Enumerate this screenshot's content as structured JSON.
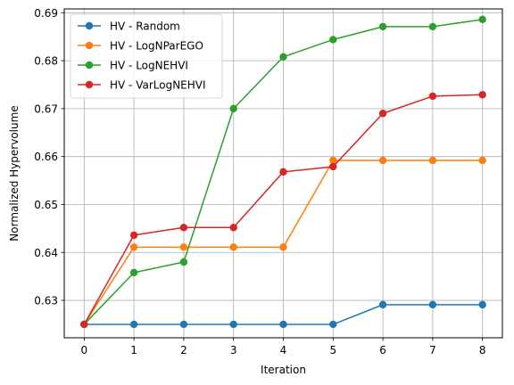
{
  "chart_data": {
    "type": "line",
    "title": "",
    "xlabel": "Iteration",
    "ylabel": "Normalized Hypervolume",
    "x": [
      0,
      1,
      2,
      3,
      4,
      5,
      6,
      7,
      8
    ],
    "xlim": [
      -0.4,
      8.4
    ],
    "ylim": [
      0.6222,
      0.6908
    ],
    "xticks": [
      0,
      1,
      2,
      3,
      4,
      5,
      6,
      7,
      8
    ],
    "yticks": [
      0.63,
      0.64,
      0.65,
      0.66,
      0.67,
      0.68,
      0.69
    ],
    "grid": true,
    "legend_position": "upper left",
    "series": [
      {
        "name": "HV - Random",
        "color": "#1f77b4",
        "values": [
          0.625,
          0.625,
          0.625,
          0.625,
          0.625,
          0.625,
          0.6291,
          0.6291,
          0.6291
        ]
      },
      {
        "name": "HV - LogNParEGO",
        "color": "#ff7f0e",
        "values": [
          0.625,
          0.6411,
          0.6411,
          0.6411,
          0.6411,
          0.6592,
          0.6592,
          0.6592,
          0.6592
        ]
      },
      {
        "name": "HV - LogNEHVI",
        "color": "#2ca02c",
        "values": [
          0.625,
          0.6358,
          0.638,
          0.67,
          0.6808,
          0.6844,
          0.6871,
          0.6871,
          0.6886
        ]
      },
      {
        "name": "HV - VarLogNEHVI",
        "color": "#d62728",
        "values": [
          0.625,
          0.6436,
          0.6452,
          0.6452,
          0.6568,
          0.6579,
          0.669,
          0.6726,
          0.6729
        ]
      }
    ]
  }
}
